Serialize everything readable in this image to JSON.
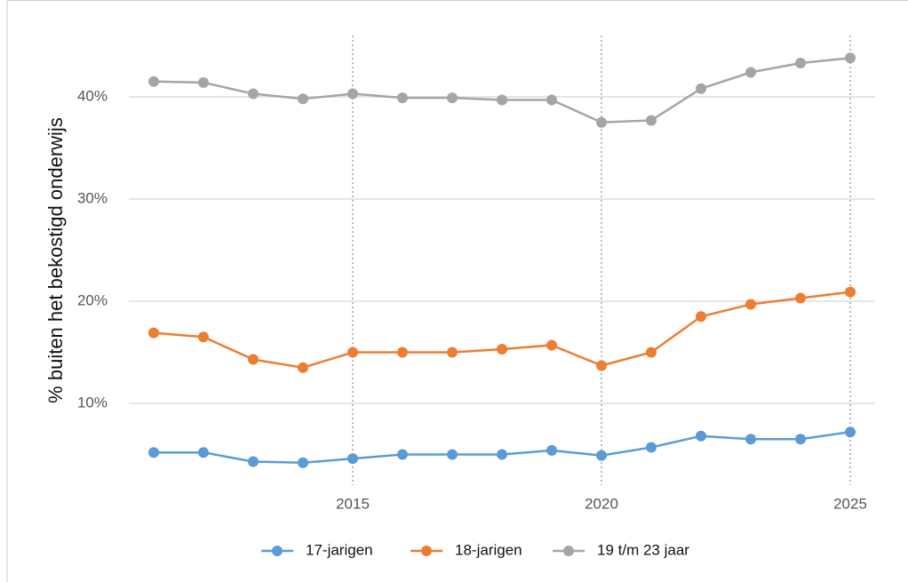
{
  "chart_data": {
    "type": "line",
    "y_label": "% buiten het bekostigd onderwijs",
    "x": [
      2011,
      2012,
      2013,
      2014,
      2015,
      2016,
      2017,
      2018,
      2019,
      2020,
      2021,
      2022,
      2023,
      2024,
      2025
    ],
    "series": [
      {
        "name": "17-jarigen",
        "color": "#5b9bd5",
        "values": [
          5.2,
          5.2,
          4.3,
          4.2,
          4.6,
          5.0,
          5.0,
          5.0,
          5.4,
          4.9,
          5.7,
          6.8,
          6.5,
          6.5,
          7.2
        ]
      },
      {
        "name": "18-jarigen",
        "color": "#ed7d31",
        "values": [
          16.9,
          16.5,
          14.3,
          13.5,
          15.0,
          15.0,
          15.0,
          15.3,
          15.7,
          13.7,
          15.0,
          18.5,
          19.7,
          20.3,
          20.9
        ]
      },
      {
        "name": "19 t/m 23 jaar",
        "color": "#a5a5a5",
        "values": [
          41.5,
          41.4,
          40.3,
          39.8,
          40.3,
          39.9,
          39.9,
          39.7,
          39.7,
          37.5,
          37.7,
          40.8,
          42.4,
          43.3,
          43.8
        ]
      }
    ],
    "xlim": [
      2010.5,
      2025.5
    ],
    "xticks": [
      2015,
      2020,
      2025
    ],
    "ylim": [
      2,
      46
    ],
    "yticks": [
      {
        "value": 10,
        "label": "10%"
      },
      {
        "value": 20,
        "label": "20%"
      },
      {
        "value": 30,
        "label": "30%"
      },
      {
        "value": 40,
        "label": "40%"
      }
    ],
    "grid": true,
    "legend": "bottom"
  }
}
